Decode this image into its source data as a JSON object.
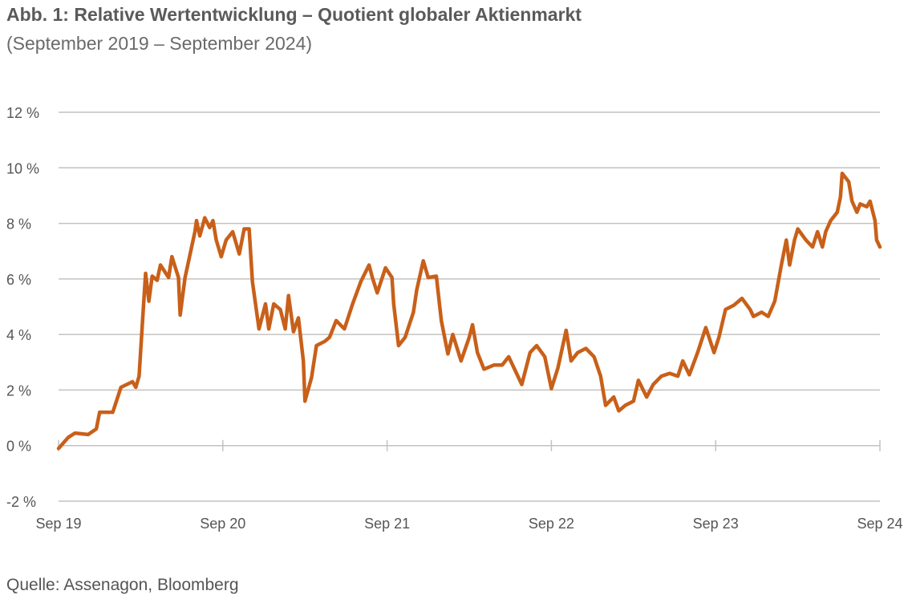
{
  "chart_data": {
    "type": "line",
    "title": "Abb. 1: Relative Wertentwicklung – Quotient globaler Aktienmarkt",
    "subtitle": "(September 2019 – September 2024)",
    "source": "Quelle: Assenagon, Bloomberg",
    "xlabel": "",
    "ylabel": "",
    "x_unit": "years since Sep 2019",
    "xlim": [
      0,
      5
    ],
    "ylim": [
      -2,
      12
    ],
    "grid": true,
    "line_color": "#c8601a",
    "x_ticks": [
      {
        "value": 0,
        "label": "Sep 19"
      },
      {
        "value": 1,
        "label": "Sep 20"
      },
      {
        "value": 2,
        "label": "Sep 21"
      },
      {
        "value": 3,
        "label": "Sep 22"
      },
      {
        "value": 4,
        "label": "Sep 23"
      },
      {
        "value": 5,
        "label": "Sep 24"
      }
    ],
    "y_ticks": [
      {
        "value": 12,
        "label": "12 %"
      },
      {
        "value": 10,
        "label": "10 %"
      },
      {
        "value": 8,
        "label": "8 %"
      },
      {
        "value": 6,
        "label": "6 %"
      },
      {
        "value": 4,
        "label": "4 %"
      },
      {
        "value": 2,
        "label": "2 %"
      },
      {
        "value": 0,
        "label": "0 %"
      },
      {
        "value": -2,
        "label": "-2 %"
      }
    ],
    "series": [
      {
        "name": "Relative Wertentwicklung",
        "points": [
          [
            0,
            -0.1
          ],
          [
            0.06,
            0.3
          ],
          [
            0.1,
            0.45
          ],
          [
            0.18,
            0.4
          ],
          [
            0.23,
            0.6
          ],
          [
            0.25,
            1.2
          ],
          [
            0.33,
            1.2
          ],
          [
            0.38,
            2.1
          ],
          [
            0.45,
            2.3
          ],
          [
            0.47,
            2.1
          ],
          [
            0.49,
            2.5
          ],
          [
            0.51,
            4.35
          ],
          [
            0.53,
            6.2
          ],
          [
            0.55,
            5.2
          ],
          [
            0.57,
            6.1
          ],
          [
            0.6,
            5.95
          ],
          [
            0.62,
            6.5
          ],
          [
            0.67,
            6.05
          ],
          [
            0.69,
            6.8
          ],
          [
            0.73,
            6.05
          ],
          [
            0.74,
            4.7
          ],
          [
            0.77,
            6.05
          ],
          [
            0.79,
            6.6
          ],
          [
            0.83,
            7.7
          ],
          [
            0.84,
            8.1
          ],
          [
            0.86,
            7.55
          ],
          [
            0.89,
            8.2
          ],
          [
            0.92,
            7.85
          ],
          [
            0.94,
            8.1
          ],
          [
            0.96,
            7.4
          ],
          [
            0.99,
            6.8
          ],
          [
            1.02,
            7.4
          ],
          [
            1.06,
            7.7
          ],
          [
            1.1,
            6.9
          ],
          [
            1.13,
            7.8
          ],
          [
            1.16,
            7.8
          ],
          [
            1.18,
            5.9
          ],
          [
            1.22,
            4.2
          ],
          [
            1.26,
            5.1
          ],
          [
            1.28,
            4.2
          ],
          [
            1.31,
            5.1
          ],
          [
            1.35,
            4.9
          ],
          [
            1.38,
            4.2
          ],
          [
            1.4,
            5.4
          ],
          [
            1.43,
            4.1
          ],
          [
            1.46,
            4.6
          ],
          [
            1.49,
            3.05
          ],
          [
            1.5,
            1.6
          ],
          [
            1.54,
            2.45
          ],
          [
            1.57,
            3.6
          ],
          [
            1.62,
            3.75
          ],
          [
            1.65,
            3.9
          ],
          [
            1.69,
            4.5
          ],
          [
            1.74,
            4.2
          ],
          [
            1.79,
            5.1
          ],
          [
            1.84,
            5.9
          ],
          [
            1.89,
            6.5
          ],
          [
            1.91,
            6.05
          ],
          [
            1.94,
            5.5
          ],
          [
            1.99,
            6.4
          ],
          [
            2.03,
            6.05
          ],
          [
            2.04,
            5.1
          ],
          [
            2.07,
            3.6
          ],
          [
            2.11,
            3.9
          ],
          [
            2.16,
            4.8
          ],
          [
            2.18,
            5.6
          ],
          [
            2.22,
            6.65
          ],
          [
            2.25,
            6.05
          ],
          [
            2.3,
            6.1
          ],
          [
            2.33,
            4.5
          ],
          [
            2.37,
            3.3
          ],
          [
            2.4,
            4.0
          ],
          [
            2.45,
            3.05
          ],
          [
            2.5,
            3.9
          ],
          [
            2.52,
            4.35
          ],
          [
            2.55,
            3.35
          ],
          [
            2.59,
            2.75
          ],
          [
            2.65,
            2.9
          ],
          [
            2.7,
            2.9
          ],
          [
            2.74,
            3.2
          ],
          [
            2.82,
            2.2
          ],
          [
            2.87,
            3.35
          ],
          [
            2.91,
            3.6
          ],
          [
            2.96,
            3.2
          ],
          [
            3.0,
            2.05
          ],
          [
            3.04,
            2.8
          ],
          [
            3.09,
            4.15
          ],
          [
            3.12,
            3.05
          ],
          [
            3.16,
            3.35
          ],
          [
            3.21,
            3.5
          ],
          [
            3.26,
            3.2
          ],
          [
            3.3,
            2.5
          ],
          [
            3.33,
            1.45
          ],
          [
            3.38,
            1.75
          ],
          [
            3.41,
            1.25
          ],
          [
            3.45,
            1.45
          ],
          [
            3.5,
            1.6
          ],
          [
            3.53,
            2.35
          ],
          [
            3.58,
            1.75
          ],
          [
            3.62,
            2.2
          ],
          [
            3.67,
            2.5
          ],
          [
            3.72,
            2.6
          ],
          [
            3.77,
            2.5
          ],
          [
            3.8,
            3.05
          ],
          [
            3.84,
            2.55
          ],
          [
            3.89,
            3.35
          ],
          [
            3.94,
            4.25
          ],
          [
            3.99,
            3.35
          ],
          [
            4.02,
            3.9
          ],
          [
            4.06,
            4.9
          ],
          [
            4.11,
            5.05
          ],
          [
            4.16,
            5.3
          ],
          [
            4.21,
            4.9
          ],
          [
            4.23,
            4.65
          ],
          [
            4.28,
            4.8
          ],
          [
            4.32,
            4.65
          ],
          [
            4.36,
            5.2
          ],
          [
            4.4,
            6.5
          ],
          [
            4.43,
            7.4
          ],
          [
            4.45,
            6.5
          ],
          [
            4.48,
            7.4
          ],
          [
            4.5,
            7.8
          ],
          [
            4.55,
            7.4
          ],
          [
            4.59,
            7.15
          ],
          [
            4.62,
            7.7
          ],
          [
            4.65,
            7.15
          ],
          [
            4.67,
            7.7
          ],
          [
            4.7,
            8.1
          ],
          [
            4.74,
            8.4
          ],
          [
            4.76,
            8.95
          ],
          [
            4.77,
            9.8
          ],
          [
            4.81,
            9.5
          ],
          [
            4.83,
            8.8
          ],
          [
            4.86,
            8.4
          ],
          [
            4.88,
            8.7
          ],
          [
            4.92,
            8.6
          ],
          [
            4.94,
            8.8
          ],
          [
            4.97,
            8.1
          ],
          [
            4.98,
            7.4
          ],
          [
            5.0,
            7.15
          ]
        ]
      }
    ]
  }
}
